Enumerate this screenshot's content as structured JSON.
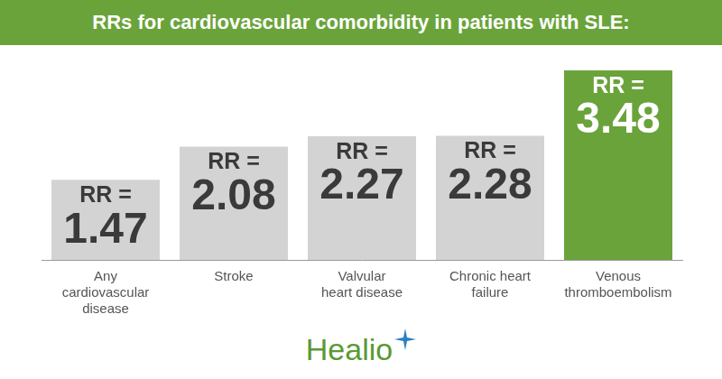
{
  "chart_data": {
    "type": "bar",
    "title": "RRs for cardiovascular comorbidity in patients with SLE:",
    "categories": [
      "Any cardiovascular disease",
      "Stroke",
      "Valvular heart disease",
      "Chronic heart failure",
      "Venous thromboembolism"
    ],
    "values": [
      1.47,
      2.08,
      2.27,
      2.28,
      3.48
    ],
    "value_labels": [
      "RR = 1.47",
      "RR = 2.08",
      "RR = 2.27",
      "RR = 2.28",
      "RR = 3.48"
    ],
    "colors": [
      "#d3d3d3",
      "#d3d3d3",
      "#d3d3d3",
      "#d3d3d3",
      "#6aa33a"
    ],
    "ylim": [
      0,
      3.48
    ],
    "grid": false,
    "data_labels": true,
    "tick_labels": "x",
    "annotations": [
      "Healio"
    ]
  }
}
